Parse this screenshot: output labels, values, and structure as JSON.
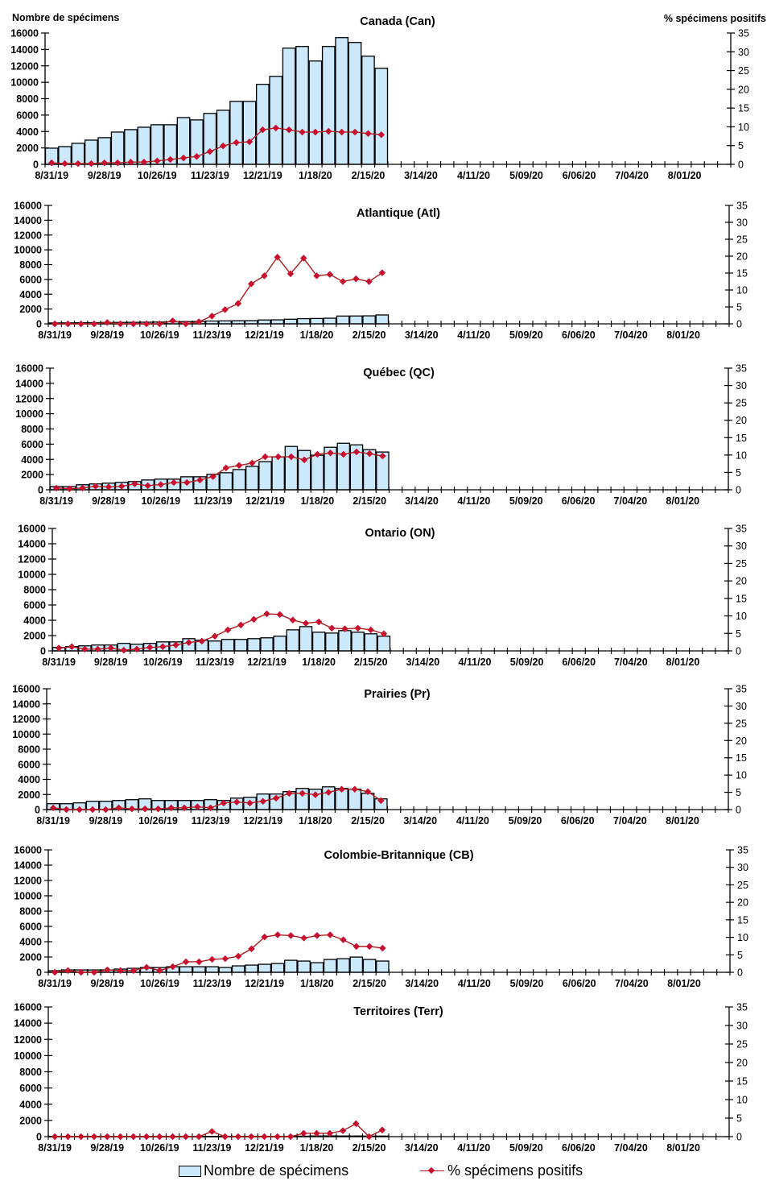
{
  "page": {
    "left_axis_title": "Nombre de spécimens",
    "right_axis_title": "% spécimens positifs"
  },
  "legend": {
    "bars_label": "Nombre de spécimens",
    "line_label": "% spécimens positifs"
  },
  "colors": {
    "bar_fill": "#cce8fb",
    "bar_stroke": "#000000",
    "line": "#b01c1c",
    "marker": "#c8102e"
  },
  "chart_data": [
    {
      "type": "bar+line",
      "title": "Canada (Can)",
      "xlabel": "",
      "ylabel": "Nombre de spécimens",
      "y2label": "% spécimens positifs",
      "ylim": [
        0,
        16000
      ],
      "y2lim": [
        0,
        35
      ],
      "yticks": [
        0,
        2000,
        4000,
        6000,
        8000,
        10000,
        12000,
        14000,
        16000
      ],
      "y2ticks": [
        0,
        5,
        10,
        15,
        20,
        25,
        30,
        35
      ],
      "weeks_total": 52,
      "x_tick_labels": [
        "8/31/19",
        "9/28/19",
        "10/26/19",
        "11/23/19",
        "12/21/19",
        "1/18/20",
        "2/15/20",
        "3/14/20",
        "4/11/20",
        "5/09/20",
        "6/06/20",
        "7/04/20",
        "8/01/20"
      ],
      "series": [
        {
          "name": "Nombre de spécimens",
          "kind": "bar",
          "values": [
            1970,
            2160,
            2560,
            2950,
            3250,
            3930,
            4230,
            4520,
            4820,
            4820,
            5700,
            5410,
            6200,
            6590,
            7670,
            7670,
            9750,
            10720,
            14160,
            14360,
            12590,
            14360,
            15440,
            14850,
            13180,
            11710
          ]
        },
        {
          "name": "% spécimens positifs",
          "kind": "line",
          "values": [
            0.4,
            0.2,
            0.2,
            0.2,
            0.4,
            0.4,
            0.6,
            0.6,
            0.9,
            1.3,
            1.7,
            2.1,
            3.4,
            4.9,
            5.8,
            6.0,
            9.2,
            9.7,
            9.2,
            8.6,
            8.6,
            8.8,
            8.6,
            8.6,
            8.2,
            7.9
          ]
        }
      ]
    },
    {
      "type": "bar+line",
      "title": "Atlantique (Atl)",
      "ylim": [
        0,
        16000
      ],
      "y2lim": [
        0,
        35
      ],
      "yticks": [
        0,
        2000,
        4000,
        6000,
        8000,
        10000,
        12000,
        14000,
        16000
      ],
      "y2ticks": [
        0,
        5,
        10,
        15,
        20,
        25,
        30,
        35
      ],
      "weeks_total": 52,
      "x_tick_labels": [
        "8/31/19",
        "9/28/19",
        "10/26/19",
        "11/23/19",
        "12/21/19",
        "1/18/20",
        "2/15/20",
        "3/14/20",
        "4/11/20",
        "5/09/20",
        "6/06/20",
        "7/04/20",
        "8/01/20"
      ],
      "series": [
        {
          "name": "Nombre de spécimens",
          "kind": "bar",
          "values": [
            120,
            130,
            150,
            160,
            180,
            190,
            200,
            220,
            240,
            280,
            300,
            320,
            380,
            400,
            420,
            430,
            520,
            540,
            620,
            700,
            720,
            760,
            1050,
            1060,
            1080,
            1200
          ]
        },
        {
          "name": "% spécimens positifs",
          "kind": "line",
          "values": [
            0,
            0,
            0,
            0,
            0.4,
            0,
            0,
            0,
            0,
            0.9,
            0,
            0.6,
            2.3,
            4.2,
            6.0,
            11.8,
            14.2,
            19.7,
            14.8,
            19.4,
            14.2,
            14.6,
            12.5,
            13.3,
            12.5,
            15.1
          ]
        }
      ]
    },
    {
      "type": "bar+line",
      "title": "Québec (QC)",
      "ylim": [
        0,
        16000
      ],
      "y2lim": [
        0,
        35
      ],
      "yticks": [
        0,
        2000,
        4000,
        6000,
        8000,
        10000,
        12000,
        14000,
        16000
      ],
      "y2ticks": [
        0,
        5,
        10,
        15,
        20,
        25,
        30,
        35
      ],
      "weeks_total": 52,
      "x_tick_labels": [
        "8/31/19",
        "9/28/19",
        "10/26/19",
        "11/23/19",
        "12/21/19",
        "1/18/20",
        "2/15/20",
        "3/14/20",
        "4/11/20",
        "5/09/20",
        "6/06/20",
        "7/04/20",
        "8/01/20"
      ],
      "series": [
        {
          "name": "Nombre de spécimens",
          "kind": "bar",
          "values": [
            420,
            420,
            660,
            770,
            870,
            980,
            1080,
            1290,
            1400,
            1400,
            1710,
            1710,
            2030,
            2240,
            2660,
            3080,
            3700,
            4330,
            5700,
            5170,
            4550,
            5590,
            6120,
            5910,
            5280,
            4970
          ]
        },
        {
          "name": "% spécimens positifs",
          "kind": "line",
          "values": [
            0.5,
            0.3,
            0.5,
            1.0,
            0.8,
            1.0,
            1.7,
            1.2,
            1.5,
            2.1,
            2.1,
            2.8,
            3.8,
            6.3,
            7.0,
            7.7,
            9.5,
            9.5,
            9.5,
            8.6,
            10.2,
            10.6,
            10.2,
            10.9,
            10.4,
            9.7
          ]
        }
      ]
    },
    {
      "type": "bar+line",
      "title": "Ontario (ON)",
      "ylim": [
        0,
        16000
      ],
      "y2lim": [
        0,
        35
      ],
      "yticks": [
        0,
        2000,
        4000,
        6000,
        8000,
        10000,
        12000,
        14000,
        16000
      ],
      "y2ticks": [
        0,
        5,
        10,
        15,
        20,
        25,
        30,
        35
      ],
      "weeks_total": 52,
      "x_tick_labels": [
        "8/31/19",
        "9/28/19",
        "10/26/19",
        "11/23/19",
        "12/21/19",
        "1/18/20",
        "2/15/20",
        "3/14/20",
        "4/11/20",
        "5/09/20",
        "6/06/20",
        "7/04/20",
        "8/01/20"
      ],
      "series": [
        {
          "name": "Nombre de spécimens",
          "kind": "bar",
          "values": [
            450,
            560,
            660,
            770,
            770,
            980,
            870,
            980,
            1180,
            1180,
            1600,
            1390,
            1290,
            1500,
            1500,
            1600,
            1710,
            1920,
            2750,
            3170,
            2440,
            2330,
            2650,
            2440,
            2230,
            1920
          ]
        },
        {
          "name": "% spécimens positifs",
          "kind": "line",
          "values": [
            0.8,
            1.2,
            0.5,
            0.5,
            0.8,
            0.2,
            0.5,
            1.0,
            1.2,
            1.7,
            2.4,
            2.8,
            4.2,
            6.0,
            7.4,
            9.0,
            10.6,
            10.4,
            8.8,
            7.9,
            8.3,
            6.5,
            6.3,
            6.5,
            6.0,
            4.9
          ]
        }
      ]
    },
    {
      "type": "bar+line",
      "title": "Prairies (Pr)",
      "ylim": [
        0,
        16000
      ],
      "y2lim": [
        0,
        35
      ],
      "yticks": [
        0,
        2000,
        4000,
        6000,
        8000,
        10000,
        12000,
        14000,
        16000
      ],
      "y2ticks": [
        0,
        5,
        10,
        15,
        20,
        25,
        30,
        35
      ],
      "weeks_total": 52,
      "x_tick_labels": [
        "8/31/19",
        "9/28/19",
        "10/26/19",
        "11/23/19",
        "12/21/19",
        "1/18/20",
        "2/15/20",
        "3/14/20",
        "4/11/20",
        "5/09/20",
        "6/06/20",
        "7/04/20",
        "8/01/20"
      ],
      "series": [
        {
          "name": "Nombre de spécimens",
          "kind": "bar",
          "values": [
            780,
            780,
            890,
            1100,
            1100,
            1200,
            1310,
            1420,
            1200,
            1200,
            1200,
            1200,
            1310,
            1200,
            1520,
            1630,
            2060,
            2060,
            2380,
            2800,
            2700,
            3010,
            2800,
            2700,
            2160,
            1420
          ]
        },
        {
          "name": "% spécimens positifs",
          "kind": "line",
          "values": [
            0.5,
            0,
            0,
            0,
            0,
            0.5,
            0.2,
            0.2,
            0.2,
            0.5,
            0.5,
            0.8,
            0.5,
            1.9,
            2.2,
            1.9,
            2.4,
            3.3,
            4.7,
            4.7,
            4.3,
            5.0,
            5.9,
            5.9,
            5.2,
            2.6
          ]
        }
      ]
    },
    {
      "type": "bar+line",
      "title": "Colombie-Britannique (CB)",
      "ylim": [
        0,
        16000
      ],
      "y2lim": [
        0,
        35
      ],
      "yticks": [
        0,
        2000,
        4000,
        6000,
        8000,
        10000,
        12000,
        14000,
        16000
      ],
      "y2ticks": [
        0,
        5,
        10,
        15,
        20,
        25,
        30,
        35
      ],
      "weeks_total": 52,
      "x_tick_labels": [
        "8/31/19",
        "9/28/19",
        "10/26/19",
        "11/23/19",
        "12/21/19",
        "1/18/20",
        "2/15/20",
        "3/14/20",
        "4/11/20",
        "5/09/20",
        "6/06/20",
        "7/04/20",
        "8/01/20"
      ],
      "series": [
        {
          "name": "Nombre de spécimens",
          "kind": "bar",
          "values": [
            210,
            310,
            310,
            310,
            310,
            420,
            520,
            630,
            630,
            730,
            730,
            730,
            730,
            630,
            840,
            940,
            1050,
            1150,
            1570,
            1470,
            1260,
            1680,
            1780,
            1990,
            1680,
            1470
          ]
        },
        {
          "name": "% spécimens positifs",
          "kind": "line",
          "values": [
            0,
            0.5,
            0,
            0,
            0.7,
            0.5,
            0.5,
            1.4,
            0.5,
            1.6,
            3.0,
            3.0,
            3.7,
            3.9,
            4.6,
            6.7,
            10.1,
            10.7,
            10.5,
            9.8,
            10.5,
            10.7,
            9.3,
            7.4,
            7.4,
            6.9
          ]
        }
      ]
    },
    {
      "type": "bar+line",
      "title": "Territoires (Terr)",
      "ylim": [
        0,
        16000
      ],
      "y2lim": [
        0,
        35
      ],
      "yticks": [
        0,
        2000,
        4000,
        6000,
        8000,
        10000,
        12000,
        14000,
        16000
      ],
      "y2ticks": [
        0,
        5,
        10,
        15,
        20,
        25,
        30,
        35
      ],
      "weeks_total": 52,
      "x_tick_labels": [
        "8/31/19",
        "9/28/19",
        "10/26/19",
        "11/23/19",
        "12/21/19",
        "1/18/20",
        "2/15/20",
        "3/14/20",
        "4/11/20",
        "5/09/20",
        "6/06/20",
        "7/04/20",
        "8/01/20"
      ],
      "series": [
        {
          "name": "Nombre de spécimens",
          "kind": "bar",
          "values": [
            20,
            20,
            20,
            20,
            20,
            20,
            20,
            20,
            20,
            20,
            20,
            20,
            30,
            30,
            30,
            30,
            30,
            30,
            40,
            60,
            80,
            90,
            80,
            80,
            70,
            70
          ]
        },
        {
          "name": "% spécimens positifs",
          "kind": "line",
          "values": [
            0,
            0,
            0,
            0,
            0,
            0,
            0,
            0,
            0,
            0,
            0,
            0,
            1.4,
            0,
            0,
            0,
            0,
            0,
            0,
            0.9,
            0.9,
            0.9,
            1.6,
            3.5,
            0,
            1.8
          ]
        }
      ]
    }
  ]
}
